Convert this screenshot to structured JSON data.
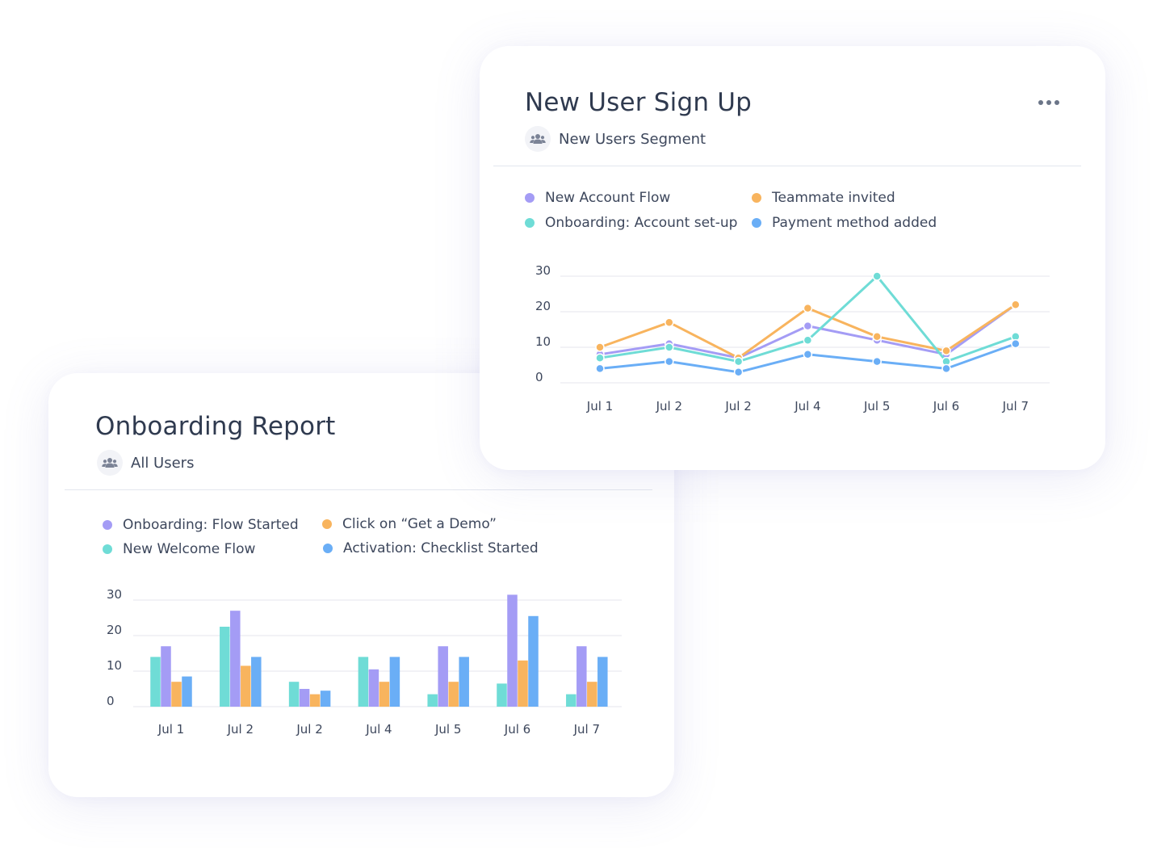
{
  "colors": {
    "purple": "#a49cf5",
    "orange": "#f8b45e",
    "teal": "#6fdcd6",
    "blue": "#6aaef6"
  },
  "icons": {
    "segment": "users-group-icon",
    "menu": "more-horizontal-icon"
  },
  "new_user_card": {
    "title": "New User Sign Up",
    "segment_label": "New Users Segment",
    "menu_label": "More options",
    "legend": [
      {
        "label": "New Account Flow",
        "color": "#a49cf5"
      },
      {
        "label": "Teammate invited",
        "color": "#f8b45e"
      },
      {
        "label": "Onboarding: Account set-up",
        "color": "#6fdcd6"
      },
      {
        "label": "Payment method added",
        "color": "#6aaef6"
      }
    ]
  },
  "onboarding_card": {
    "title": "Onboarding Report",
    "segment_label": "All Users",
    "legend": [
      {
        "label": "Onboarding: Flow Started",
        "color": "#a49cf5"
      },
      {
        "label": "Click on “Get a Demo”",
        "color": "#f8b45e"
      },
      {
        "label": "New Welcome Flow",
        "color": "#6fdcd6"
      },
      {
        "label": "Activation: Checklist Started",
        "color": "#6aaef6"
      }
    ]
  },
  "chart_data": [
    {
      "type": "line",
      "title": "New User Sign Up",
      "categories": [
        "Jul 1",
        "Jul 2",
        "Jul 2",
        "Jul 4",
        "Jul 5",
        "Jul 6",
        "Jul 7"
      ],
      "yticks": [
        "30",
        "20",
        "10",
        "0"
      ],
      "ylim": [
        0,
        30
      ],
      "grid": true,
      "series": [
        {
          "name": "New Account Flow",
          "color": "#a49cf5",
          "values": [
            8,
            11,
            7,
            16,
            12,
            8,
            22
          ]
        },
        {
          "name": "Teammate invited",
          "color": "#f8b45e",
          "values": [
            10,
            17,
            7,
            21,
            13,
            9,
            22
          ]
        },
        {
          "name": "Onboarding: Account set-up",
          "color": "#6fdcd6",
          "values": [
            7,
            10,
            6,
            12,
            30,
            6,
            13
          ]
        },
        {
          "name": "Payment method added",
          "color": "#6aaef6",
          "values": [
            4,
            6,
            3,
            8,
            6,
            4,
            11
          ]
        }
      ]
    },
    {
      "type": "bar",
      "title": "Onboarding Report",
      "categories": [
        "Jul 1",
        "Jul 2",
        "Jul 2",
        "Jul 4",
        "Jul 5",
        "Jul 6",
        "Jul 7"
      ],
      "yticks": [
        "30",
        "20",
        "10",
        "0"
      ],
      "ylim": [
        0,
        30
      ],
      "grid": true,
      "series": [
        {
          "name": "New Welcome Flow",
          "color": "#6fdcd6",
          "values": [
            14,
            22.5,
            7,
            14,
            3.5,
            6.5,
            3.5
          ]
        },
        {
          "name": "Onboarding: Flow Started",
          "color": "#a49cf5",
          "values": [
            17,
            27,
            5,
            10.5,
            17,
            31.5,
            17
          ]
        },
        {
          "name": "Click on “Get a Demo”",
          "color": "#f8b45e",
          "values": [
            7,
            11.5,
            3.5,
            7,
            7,
            13,
            7
          ]
        },
        {
          "name": "Activation: Checklist Started",
          "color": "#6aaef6",
          "values": [
            8.5,
            14,
            4.5,
            14,
            14,
            25.5,
            14
          ]
        }
      ]
    }
  ]
}
